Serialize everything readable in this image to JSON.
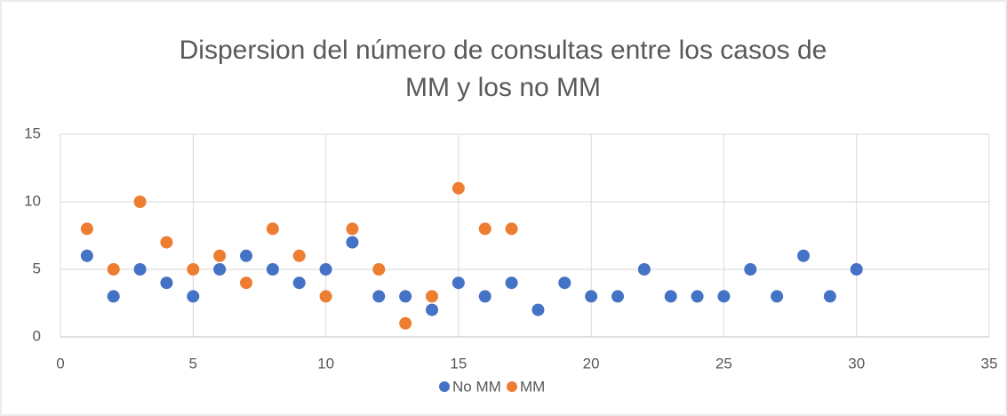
{
  "chart_data": {
    "type": "scatter",
    "title": [
      "Dispersion del número de consultas entre los casos de",
      "MM y los no MM"
    ],
    "series": [
      {
        "name": "No MM",
        "color": "#4472c4",
        "x": [
          1,
          2,
          3,
          4,
          5,
          6,
          7,
          8,
          9,
          10,
          11,
          12,
          13,
          14,
          15,
          16,
          17,
          18,
          19,
          20,
          21,
          22,
          23,
          24,
          25,
          26,
          27,
          28,
          29,
          30
        ],
        "values": [
          6,
          3,
          5,
          4,
          3,
          5,
          6,
          5,
          4,
          5,
          7,
          3,
          3,
          2,
          4,
          3,
          4,
          2,
          4,
          3,
          3,
          5,
          3,
          3,
          3,
          5,
          3,
          6,
          3,
          5
        ]
      },
      {
        "name": "MM",
        "color": "#ed7d31",
        "x": [
          1,
          2,
          3,
          4,
          5,
          6,
          7,
          8,
          9,
          10,
          11,
          12,
          13,
          14,
          15,
          16,
          17
        ],
        "values": [
          8,
          5,
          10,
          7,
          5,
          6,
          4,
          8,
          6,
          3,
          8,
          5,
          1,
          3,
          11,
          8,
          8
        ]
      }
    ],
    "xlim": [
      0,
      35
    ],
    "xticks": [
      0,
      5,
      10,
      15,
      20,
      25,
      30,
      35
    ],
    "ylim": [
      0,
      15
    ],
    "yticks": [
      0,
      5,
      10,
      15
    ],
    "grid": true,
    "legend": "bottom"
  }
}
